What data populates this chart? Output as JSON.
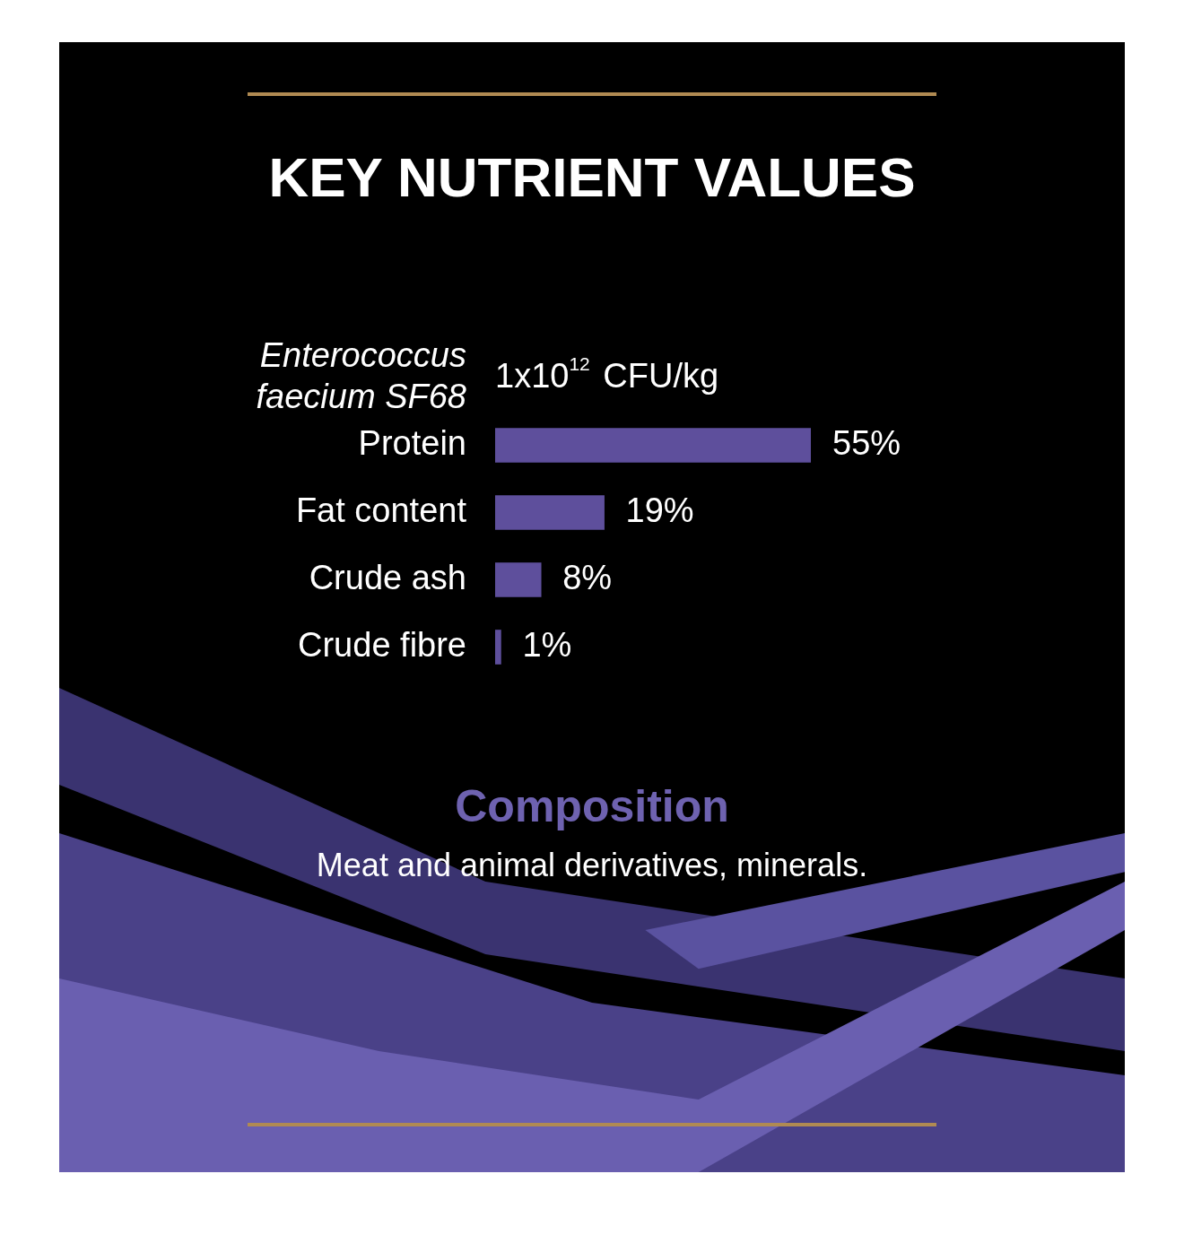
{
  "chart_data": {
    "type": "bar",
    "orientation": "horizontal",
    "title": "KEY NUTRIENT VALUES",
    "categories": [
      "Enterococcus faecium SF68",
      "Protein",
      "Fat content",
      "Crude ash",
      "Crude fibre"
    ],
    "values": [
      null,
      55,
      19,
      8,
      1
    ],
    "value_labels": [
      "1x10$^{12}$ CFU/kg",
      "55%",
      "19%",
      "8%",
      "1%"
    ],
    "color": "#5e4f9c",
    "legend": false,
    "tick_labels": "y",
    "annotations": [
      "Composition",
      "Meat and animal derivatives, minerals."
    ]
  }
}
